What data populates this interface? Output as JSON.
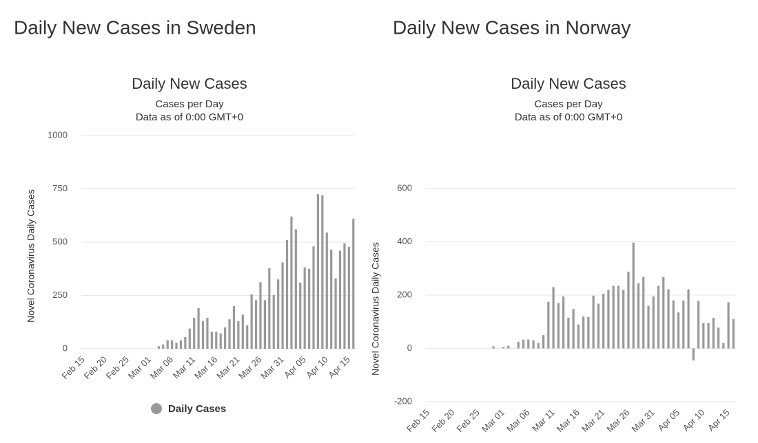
{
  "chart_data": [
    {
      "type": "bar",
      "page_title": "Daily New Cases in Sweden",
      "title": "Daily New Cases",
      "subtitle": [
        "Cases per Day",
        "Data as of 0:00 GMT+0"
      ],
      "ylabel": "Novel Coronavirus Daily Cases",
      "categories": [
        "Feb 15",
        null,
        null,
        null,
        null,
        "Feb 20",
        null,
        null,
        null,
        null,
        "Feb 25",
        null,
        null,
        null,
        null,
        "Mar 01",
        null,
        null,
        null,
        null,
        "Mar 06",
        null,
        null,
        null,
        null,
        "Mar 11",
        null,
        null,
        null,
        null,
        "Mar 16",
        null,
        null,
        null,
        null,
        "Mar 21",
        null,
        null,
        null,
        null,
        "Mar 26",
        null,
        null,
        null,
        null,
        "Mar 31",
        null,
        null,
        null,
        null,
        "Apr 05",
        null,
        null,
        null,
        null,
        "Apr 10",
        null,
        null,
        null,
        null,
        "Apr 15",
        null
      ],
      "series": [
        {
          "name": "Daily Cases",
          "color": "#999999",
          "values": [
            0,
            0,
            0,
            0,
            0,
            0,
            0,
            0,
            0,
            0,
            0,
            0,
            0,
            0,
            0,
            0,
            0,
            12,
            20,
            40,
            40,
            28,
            40,
            55,
            95,
            145,
            190,
            130,
            145,
            80,
            80,
            72,
            100,
            138,
            200,
            130,
            160,
            110,
            255,
            228,
            312,
            228,
            378,
            252,
            325,
            405,
            510,
            620,
            560,
            310,
            382,
            375,
            480,
            725,
            720,
            545,
            465,
            330,
            460,
            495,
            478,
            610
          ]
        }
      ],
      "ylim": [
        0,
        1000
      ],
      "yticks": [
        0,
        250,
        500,
        750,
        1000
      ],
      "grid": true,
      "legend": true
    },
    {
      "type": "bar",
      "page_title": "Daily New Cases in Norway",
      "title": "Daily New Cases",
      "subtitle": [
        "Cases per Day",
        "Data as of 0:00 GMT+0"
      ],
      "ylabel": "Novel Coronavirus Daily Cases",
      "categories": [
        "Feb 15",
        null,
        null,
        null,
        null,
        "Feb 20",
        null,
        null,
        null,
        null,
        "Feb 25",
        null,
        null,
        null,
        null,
        "Mar 01",
        null,
        null,
        null,
        null,
        "Mar 06",
        null,
        null,
        null,
        null,
        "Mar 11",
        null,
        null,
        null,
        null,
        "Mar 16",
        null,
        null,
        null,
        null,
        "Mar 21",
        null,
        null,
        null,
        null,
        "Mar 26",
        null,
        null,
        null,
        null,
        "Mar 31",
        null,
        null,
        null,
        null,
        "Apr 05",
        null,
        null,
        null,
        null,
        "Apr 10",
        null,
        null,
        null,
        null,
        "Apr 15",
        null
      ],
      "series": [
        {
          "color": "#999999",
          "values": [
            0,
            0,
            0,
            0,
            0,
            0,
            0,
            0,
            0,
            0,
            0,
            0,
            0,
            8,
            0,
            5,
            10,
            0,
            25,
            33,
            33,
            30,
            20,
            50,
            175,
            230,
            170,
            195,
            115,
            148,
            90,
            120,
            118,
            198,
            168,
            205,
            220,
            235,
            235,
            220,
            288,
            397,
            245,
            268,
            160,
            195,
            235,
            268,
            222,
            180,
            135,
            180,
            222,
            -45,
            178,
            95,
            95,
            115,
            78,
            20,
            173,
            110
          ]
        }
      ],
      "ylim": [
        -200,
        600
      ],
      "yticks": [
        -200,
        0,
        200,
        400,
        600
      ],
      "grid": true,
      "legend": false
    }
  ]
}
